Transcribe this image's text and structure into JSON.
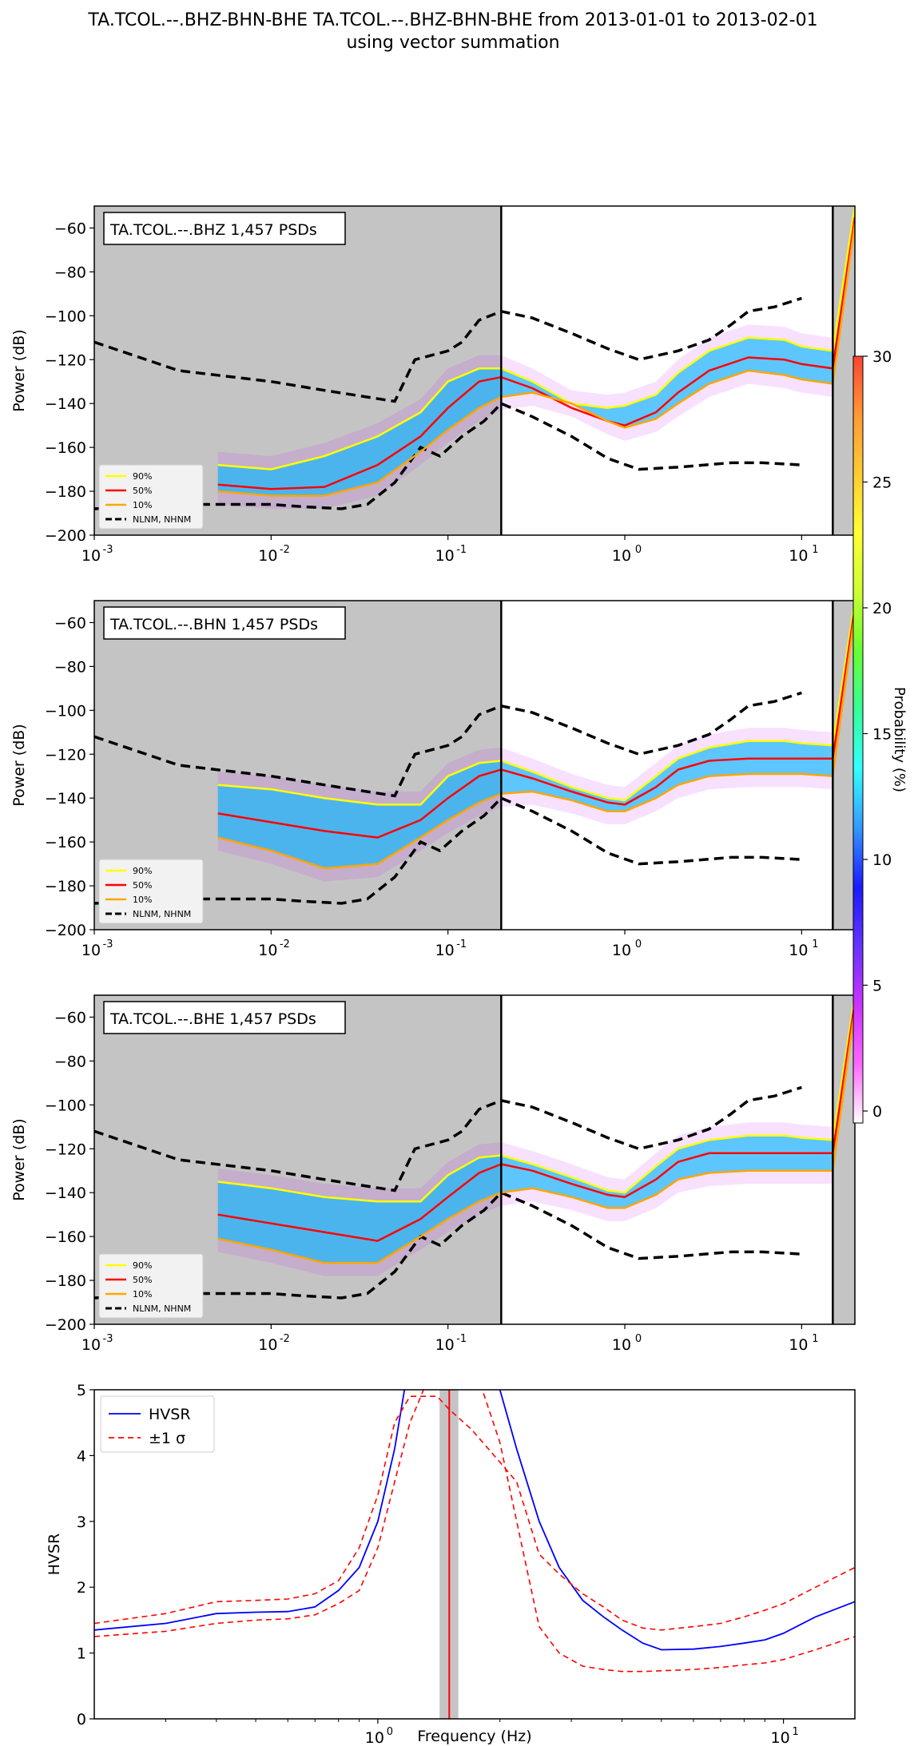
{
  "title": {
    "line1": "TA.TCOL.--.BHZ-BHN-BHE TA.TCOL.--.BHZ-BHN-BHE from 2013-01-01 to 2013-02-01",
    "line2": "using vector summation"
  },
  "colorbar": {
    "label": "Probability (%)",
    "ticks": [
      "0",
      "5",
      "10",
      "15",
      "20",
      "25",
      "30"
    ],
    "min": 0,
    "max": 30,
    "colormap": [
      "#ffffff",
      "#ff66ff",
      "#cc33ff",
      "#6633ff",
      "#1a1aff",
      "#3399ff",
      "#33ffff",
      "#33ff99",
      "#66ff33",
      "#ccff33",
      "#ffff33",
      "#ffcc33",
      "#ff9933",
      "#ff4433"
    ]
  },
  "colors": {
    "p90": "#ffff00",
    "p50": "#ff0000",
    "p10": "#ffa500",
    "noise_model": "#000000",
    "hvsr": "#0000ff",
    "sigma": "#ff0000",
    "shade": "#c4c4c4",
    "peak_band": "#c4c4c4"
  },
  "chart_data": [
    {
      "type": "heatmap",
      "channel_label": "TA.TCOL.--.BHZ 1,457 PSDs",
      "xscale": "log",
      "xlim": [
        0.001,
        20
      ],
      "ylim": [
        -200,
        -50
      ],
      "xticks": [
        "10",
        "10",
        "10",
        "10",
        "10"
      ],
      "xtick_exponents": [
        "-3",
        "-2",
        "-1",
        "0",
        "1"
      ],
      "yticks": [
        "−60",
        "−80",
        "−100",
        "−120",
        "−140",
        "−160",
        "−180",
        "−200"
      ],
      "ylabel": "Power (dB)",
      "legend": [
        "90%",
        "50%",
        "10%",
        "NLNM, NHNM"
      ],
      "legend_position": "lower-left",
      "shaded_ranges": [
        [
          0.001,
          0.2
        ],
        [
          15,
          20
        ]
      ],
      "vlines": [
        0.2,
        15
      ],
      "series": [
        {
          "name": "90%",
          "x": [
            0.005,
            0.01,
            0.02,
            0.04,
            0.07,
            0.1,
            0.15,
            0.2,
            0.3,
            0.5,
            0.8,
            1.0,
            1.5,
            2.0,
            3.0,
            5.0,
            8.0,
            10,
            15,
            20
          ],
          "values": [
            -168,
            -170,
            -164,
            -155,
            -144,
            -130,
            -124,
            -124,
            -130,
            -140,
            -142,
            -141,
            -136,
            -126,
            -116,
            -110,
            -111,
            -114,
            -116,
            -50
          ]
        },
        {
          "name": "50%",
          "x": [
            0.005,
            0.01,
            0.02,
            0.04,
            0.07,
            0.1,
            0.15,
            0.2,
            0.3,
            0.5,
            0.8,
            1.0,
            1.5,
            2.0,
            3.0,
            5.0,
            8.0,
            10,
            15,
            20
          ],
          "values": [
            -177,
            -179,
            -178,
            -168,
            -155,
            -142,
            -130,
            -128,
            -133,
            -142,
            -148,
            -150,
            -144,
            -135,
            -125,
            -119,
            -120,
            -122,
            -124,
            -55
          ]
        },
        {
          "name": "10%",
          "x": [
            0.005,
            0.01,
            0.02,
            0.04,
            0.07,
            0.1,
            0.15,
            0.2,
            0.3,
            0.5,
            0.8,
            1.0,
            1.5,
            2.0,
            3.0,
            5.0,
            8.0,
            10,
            15,
            20
          ],
          "values": [
            -180,
            -182,
            -182,
            -176,
            -162,
            -152,
            -142,
            -137,
            -135,
            -140,
            -148,
            -151,
            -147,
            -140,
            -131,
            -125,
            -127,
            -129,
            -131,
            -58
          ]
        }
      ]
    },
    {
      "type": "heatmap",
      "channel_label": "TA.TCOL.--.BHN 1,457 PSDs",
      "xscale": "log",
      "xlim": [
        0.001,
        20
      ],
      "ylim": [
        -200,
        -50
      ],
      "xticks": [
        "10",
        "10",
        "10",
        "10",
        "10"
      ],
      "xtick_exponents": [
        "-3",
        "-2",
        "-1",
        "0",
        "1"
      ],
      "yticks": [
        "−60",
        "−80",
        "−100",
        "−120",
        "−140",
        "−160",
        "−180",
        "−200"
      ],
      "ylabel": "Power (dB)",
      "legend": [
        "90%",
        "50%",
        "10%",
        "NLNM, NHNM"
      ],
      "legend_position": "lower-left",
      "shaded_ranges": [
        [
          0.001,
          0.2
        ],
        [
          15,
          20
        ]
      ],
      "vlines": [
        0.2,
        15
      ],
      "series": [
        {
          "name": "90%",
          "x": [
            0.005,
            0.01,
            0.02,
            0.04,
            0.07,
            0.1,
            0.15,
            0.2,
            0.3,
            0.5,
            0.8,
            1.0,
            1.5,
            2.0,
            3.0,
            5.0,
            8.0,
            10,
            15,
            20
          ],
          "values": [
            -134,
            -136,
            -140,
            -143,
            -143,
            -130,
            -124,
            -123,
            -128,
            -135,
            -140,
            -141,
            -130,
            -122,
            -117,
            -114,
            -114,
            -115,
            -116,
            -50
          ]
        },
        {
          "name": "50%",
          "x": [
            0.005,
            0.01,
            0.02,
            0.04,
            0.07,
            0.1,
            0.15,
            0.2,
            0.3,
            0.5,
            0.8,
            1.0,
            1.5,
            2.0,
            3.0,
            5.0,
            8.0,
            10,
            15,
            20
          ],
          "values": [
            -147,
            -151,
            -155,
            -158,
            -150,
            -140,
            -130,
            -127,
            -131,
            -137,
            -142,
            -143,
            -135,
            -127,
            -123,
            -122,
            -122,
            -122,
            -122,
            -53
          ]
        },
        {
          "name": "10%",
          "x": [
            0.005,
            0.01,
            0.02,
            0.04,
            0.07,
            0.1,
            0.15,
            0.2,
            0.3,
            0.5,
            0.8,
            1.0,
            1.5,
            2.0,
            3.0,
            5.0,
            8.0,
            10,
            15,
            20
          ],
          "values": [
            -158,
            -164,
            -172,
            -170,
            -158,
            -150,
            -142,
            -138,
            -137,
            -141,
            -146,
            -146,
            -140,
            -134,
            -130,
            -129,
            -129,
            -129,
            -130,
            -56
          ]
        }
      ]
    },
    {
      "type": "heatmap",
      "channel_label": "TA.TCOL.--.BHE 1,457 PSDs",
      "xscale": "log",
      "xlim": [
        0.001,
        20
      ],
      "ylim": [
        -200,
        -50
      ],
      "xticks": [
        "10",
        "10",
        "10",
        "10",
        "10"
      ],
      "xtick_exponents": [
        "-3",
        "-2",
        "-1",
        "0",
        "1"
      ],
      "yticks": [
        "−60",
        "−80",
        "−100",
        "−120",
        "−140",
        "−160",
        "−180",
        "−200"
      ],
      "ylabel": "Power (dB)",
      "legend": [
        "90%",
        "50%",
        "10%",
        "NLNM, NHNM"
      ],
      "legend_position": "lower-left",
      "shaded_ranges": [
        [
          0.001,
          0.2
        ],
        [
          15,
          20
        ]
      ],
      "vlines": [
        0.2,
        15
      ],
      "series": [
        {
          "name": "90%",
          "x": [
            0.005,
            0.01,
            0.02,
            0.04,
            0.07,
            0.1,
            0.15,
            0.2,
            0.3,
            0.5,
            0.8,
            1.0,
            1.5,
            2.0,
            3.0,
            5.0,
            8.0,
            10,
            15,
            20
          ],
          "values": [
            -135,
            -138,
            -142,
            -144,
            -144,
            -132,
            -124,
            -123,
            -127,
            -133,
            -139,
            -140,
            -128,
            -120,
            -116,
            -114,
            -114,
            -115,
            -116,
            -50
          ]
        },
        {
          "name": "50%",
          "x": [
            0.005,
            0.01,
            0.02,
            0.04,
            0.07,
            0.1,
            0.15,
            0.2,
            0.3,
            0.5,
            0.8,
            1.0,
            1.5,
            2.0,
            3.0,
            5.0,
            8.0,
            10,
            15,
            20
          ],
          "values": [
            -150,
            -154,
            -158,
            -162,
            -152,
            -142,
            -131,
            -127,
            -130,
            -136,
            -141,
            -142,
            -134,
            -126,
            -122,
            -122,
            -122,
            -122,
            -122,
            -53
          ]
        },
        {
          "name": "10%",
          "x": [
            0.005,
            0.01,
            0.02,
            0.04,
            0.07,
            0.1,
            0.15,
            0.2,
            0.3,
            0.5,
            0.8,
            1.0,
            1.5,
            2.0,
            3.0,
            5.0,
            8.0,
            10,
            15,
            20
          ],
          "values": [
            -161,
            -166,
            -172,
            -172,
            -160,
            -152,
            -144,
            -140,
            -138,
            -142,
            -147,
            -147,
            -141,
            -134,
            -131,
            -130,
            -130,
            -130,
            -130,
            -56
          ]
        }
      ]
    },
    {
      "type": "line",
      "xscale": "log",
      "xlim": [
        0.2,
        15
      ],
      "ylim": [
        0,
        5
      ],
      "xticks": [
        "10",
        "10"
      ],
      "xtick_exponents": [
        "0",
        "1"
      ],
      "yticks": [
        "0",
        "1",
        "2",
        "3",
        "4",
        "5"
      ],
      "xlabel": "Frequency (Hz)",
      "ylabel": "HVSR",
      "legend": [
        "HVSR",
        "±1 σ"
      ],
      "legend_position": "top-left",
      "peak_frequency": 1.5,
      "peak_band": [
        1.42,
        1.58
      ],
      "series": [
        {
          "name": "HVSR",
          "x": [
            0.2,
            0.3,
            0.4,
            0.5,
            0.6,
            0.7,
            0.8,
            0.9,
            1.0,
            1.1,
            1.2,
            1.5,
            2.0,
            2.2,
            2.5,
            2.8,
            3.2,
            3.6,
            4.0,
            4.5,
            5.0,
            6.0,
            7.0,
            8.0,
            9.0,
            10.0,
            12.0,
            15.0
          ],
          "values": [
            1.35,
            1.45,
            1.6,
            1.62,
            1.63,
            1.7,
            1.95,
            2.3,
            3.0,
            4.1,
            5.5,
            6.5,
            5.0,
            4.1,
            3.0,
            2.3,
            1.8,
            1.55,
            1.35,
            1.15,
            1.05,
            1.06,
            1.1,
            1.15,
            1.2,
            1.3,
            1.55,
            1.78
          ]
        },
        {
          "name": "+1σ",
          "x": [
            0.2,
            0.3,
            0.4,
            0.5,
            0.6,
            0.7,
            0.8,
            0.9,
            1.0,
            1.1,
            1.2,
            1.4,
            1.5,
            1.7,
            2.0,
            2.2,
            2.5,
            2.8,
            3.2,
            3.6,
            4.0,
            4.5,
            5.0,
            6.0,
            7.0,
            8.0,
            9.0,
            10.0,
            12.0,
            15.0
          ],
          "values": [
            1.45,
            1.6,
            1.78,
            1.8,
            1.82,
            1.9,
            2.1,
            2.6,
            3.4,
            4.5,
            4.9,
            4.9,
            4.7,
            4.4,
            3.9,
            3.6,
            2.5,
            2.2,
            1.9,
            1.7,
            1.5,
            1.38,
            1.35,
            1.4,
            1.45,
            1.55,
            1.65,
            1.75,
            2.0,
            2.3
          ]
        },
        {
          "name": "−1σ",
          "x": [
            0.2,
            0.3,
            0.4,
            0.5,
            0.6,
            0.7,
            0.8,
            0.9,
            1.0,
            1.1,
            1.2,
            1.4,
            1.5,
            1.7,
            2.0,
            2.2,
            2.5,
            2.8,
            3.2,
            3.6,
            4.0,
            4.5,
            5.0,
            6.0,
            7.0,
            8.0,
            9.0,
            10.0,
            12.0,
            15.0
          ],
          "values": [
            1.25,
            1.33,
            1.45,
            1.5,
            1.52,
            1.58,
            1.75,
            1.95,
            2.6,
            3.6,
            4.5,
            5.5,
            6.0,
            5.5,
            4.2,
            3.0,
            1.4,
            1.0,
            0.8,
            0.75,
            0.72,
            0.72,
            0.73,
            0.75,
            0.78,
            0.82,
            0.85,
            0.9,
            1.05,
            1.25
          ]
        }
      ]
    }
  ]
}
